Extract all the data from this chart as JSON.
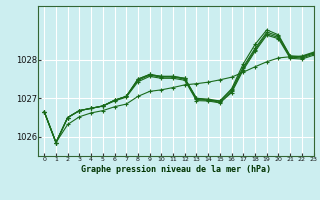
{
  "title": "Graphe pression niveau de la mer (hPa)",
  "background_color": "#cceef0",
  "grid_color": "#ffffff",
  "line_color": "#1a6b1a",
  "xlim": [
    -0.5,
    23
  ],
  "ylim": [
    1025.5,
    1029.4
  ],
  "yticks": [
    1026,
    1027,
    1028
  ],
  "xticks": [
    0,
    1,
    2,
    3,
    4,
    5,
    6,
    7,
    8,
    9,
    10,
    11,
    12,
    13,
    14,
    15,
    16,
    17,
    18,
    19,
    20,
    21,
    22,
    23
  ],
  "line1": [
    1026.65,
    1025.85,
    1026.5,
    1026.68,
    1026.74,
    1026.8,
    1026.95,
    1027.05,
    1027.5,
    1027.62,
    1027.57,
    1027.57,
    1027.52,
    1027.0,
    1026.98,
    1026.93,
    1027.22,
    1027.82,
    1028.3,
    1028.72,
    1028.62,
    1028.1,
    1028.08,
    1028.18
  ],
  "line2": [
    1026.65,
    1025.85,
    1026.5,
    1026.68,
    1026.74,
    1026.8,
    1026.95,
    1027.05,
    1027.47,
    1027.6,
    1027.55,
    1027.55,
    1027.5,
    1026.97,
    1026.95,
    1026.9,
    1027.18,
    1027.78,
    1028.26,
    1028.68,
    1028.58,
    1028.07,
    1028.05,
    1028.15
  ],
  "line3": [
    1026.65,
    1025.85,
    1026.5,
    1026.68,
    1026.74,
    1026.8,
    1026.93,
    1027.03,
    1027.43,
    1027.57,
    1027.52,
    1027.52,
    1027.47,
    1026.94,
    1026.93,
    1026.88,
    1027.15,
    1027.74,
    1028.22,
    1028.64,
    1028.55,
    1028.04,
    1028.02,
    1028.12
  ],
  "line_jagged": [
    1026.65,
    1025.85,
    1026.5,
    1026.68,
    1026.74,
    1026.8,
    1026.95,
    1027.05,
    1027.5,
    1027.62,
    1027.57,
    1027.57,
    1027.52,
    1027.0,
    1026.95,
    1026.93,
    1027.25,
    1027.9,
    1028.4,
    1028.78,
    1028.65,
    1028.1,
    1028.08,
    1028.18
  ],
  "line_straight": [
    1026.65,
    1025.85,
    1026.32,
    1026.52,
    1026.62,
    1026.68,
    1026.78,
    1026.85,
    1027.05,
    1027.18,
    1027.22,
    1027.28,
    1027.35,
    1027.38,
    1027.42,
    1027.48,
    1027.55,
    1027.68,
    1027.82,
    1027.95,
    1028.05,
    1028.08,
    1028.1,
    1028.2
  ]
}
